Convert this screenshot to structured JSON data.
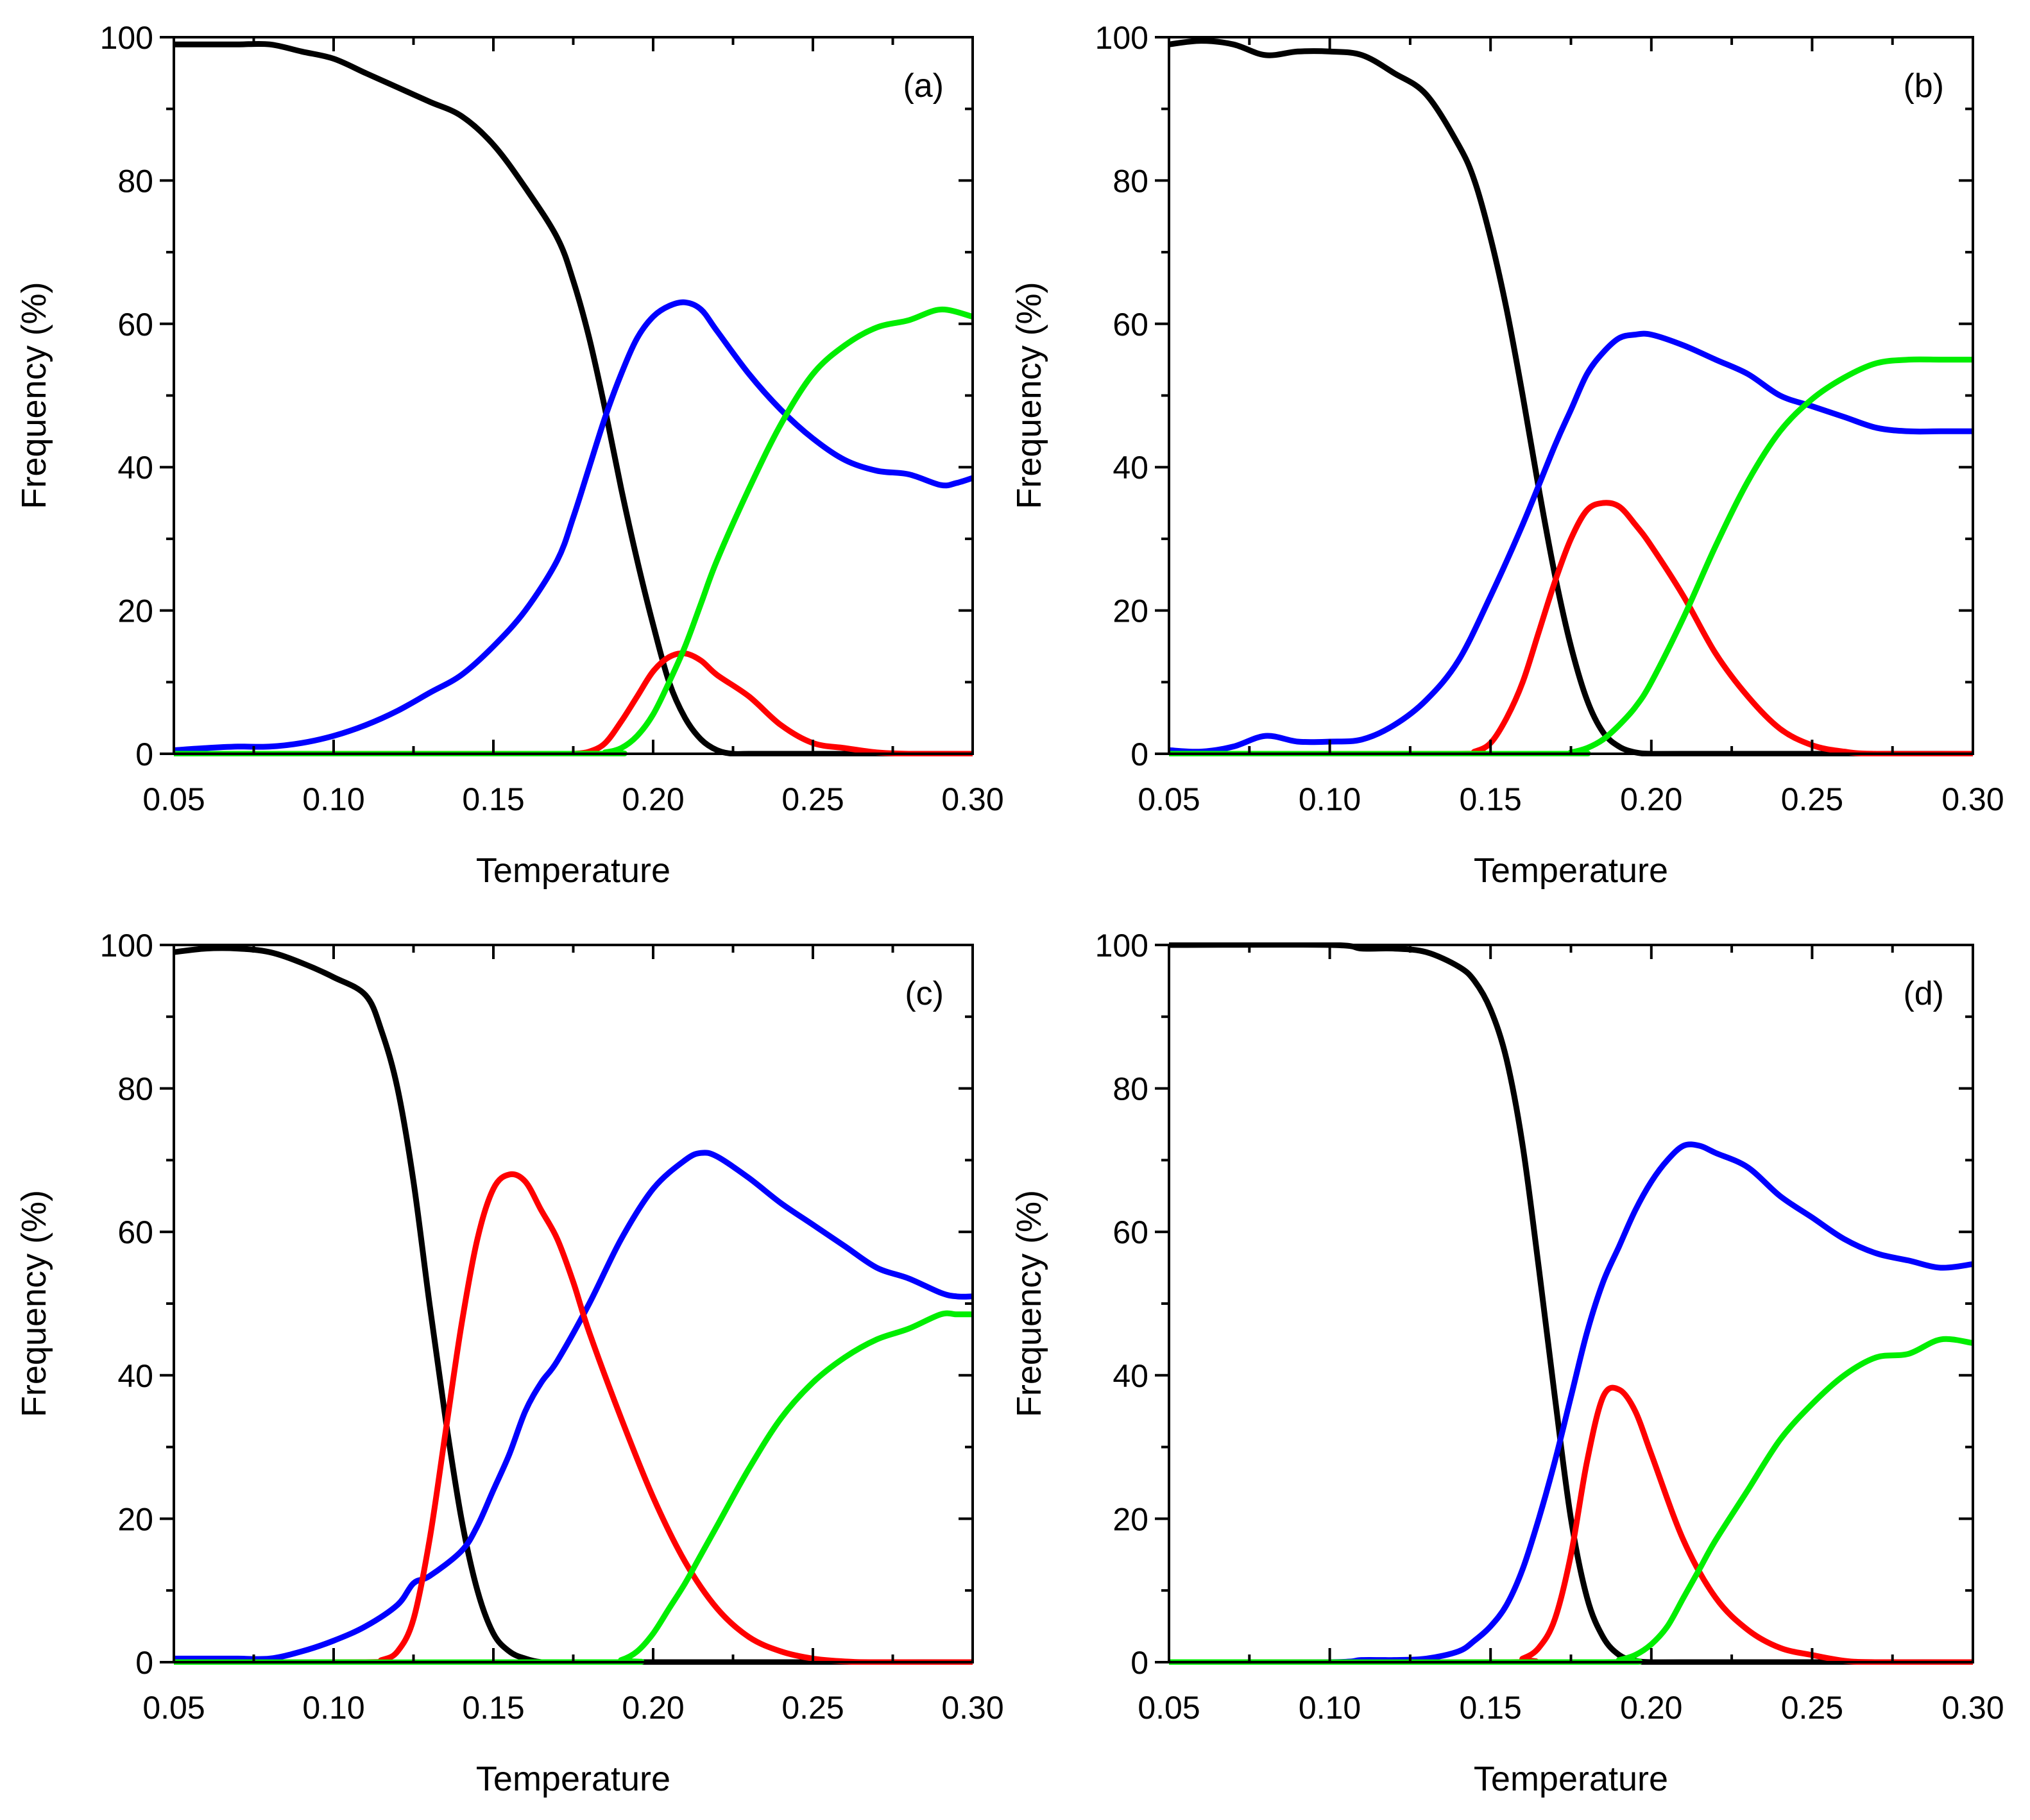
{
  "figure": {
    "panel_count": 4,
    "line_width_note": "thick curves",
    "colors": {
      "black": "#000000",
      "blue": "#0000ff",
      "red": "#ff0000",
      "green": "#00ee00",
      "axes": "#000000"
    }
  },
  "chart_data": [
    {
      "type": "line",
      "panel_label": "(a)",
      "xlabel": "Temperature",
      "ylabel": "Frequency (%)",
      "xlim": [
        0.05,
        0.3
      ],
      "ylim": [
        0,
        100
      ],
      "xticks": [
        "0.05",
        "0.10",
        "0.15",
        "0.20",
        "0.25",
        "0.30"
      ],
      "yticks": [
        "0",
        "20",
        "40",
        "60",
        "80",
        "100"
      ],
      "grid": false,
      "series": [
        {
          "color": "#000000",
          "x": [
            0.05,
            0.06,
            0.07,
            0.08,
            0.09,
            0.1,
            0.11,
            0.12,
            0.13,
            0.14,
            0.15,
            0.16,
            0.17,
            0.175,
            0.18,
            0.185,
            0.19,
            0.195,
            0.2,
            0.205,
            0.21,
            0.215,
            0.22,
            0.225,
            0.23,
            0.25,
            0.3
          ],
          "y": [
            99,
            99,
            99,
            99,
            98,
            97,
            95,
            93,
            91,
            89,
            85,
            79,
            72,
            66,
            58,
            48,
            37,
            27,
            18,
            10,
            5,
            2,
            0.5,
            0,
            0,
            0,
            0
          ]
        },
        {
          "color": "#0000ff",
          "x": [
            0.05,
            0.06,
            0.07,
            0.08,
            0.09,
            0.1,
            0.11,
            0.12,
            0.13,
            0.14,
            0.15,
            0.16,
            0.17,
            0.175,
            0.18,
            0.185,
            0.19,
            0.195,
            0.2,
            0.205,
            0.21,
            0.215,
            0.22,
            0.23,
            0.24,
            0.25,
            0.26,
            0.27,
            0.28,
            0.29,
            0.295,
            0.3
          ],
          "y": [
            0.5,
            0.8,
            1,
            1,
            1.5,
            2.5,
            4,
            6,
            8.5,
            11,
            15,
            20,
            27,
            33,
            40,
            47,
            53,
            58,
            61,
            62.5,
            63,
            62,
            59,
            53,
            48,
            44,
            41,
            39.5,
            39,
            37.5,
            37.8,
            38.5
          ]
        },
        {
          "color": "#ff0000",
          "x": [
            0.05,
            0.17,
            0.175,
            0.18,
            0.185,
            0.19,
            0.195,
            0.2,
            0.205,
            0.21,
            0.215,
            0.22,
            0.23,
            0.24,
            0.25,
            0.26,
            0.27,
            0.28,
            0.3
          ],
          "y": [
            0,
            0,
            0,
            0.3,
            1.5,
            4.5,
            8,
            11.5,
            13.5,
            14,
            13,
            11,
            8,
            4,
            1.5,
            0.8,
            0.2,
            0,
            0
          ]
        },
        {
          "color": "#00ee00",
          "x": [
            0.05,
            0.18,
            0.185,
            0.19,
            0.195,
            0.2,
            0.205,
            0.21,
            0.215,
            0.22,
            0.23,
            0.24,
            0.25,
            0.26,
            0.27,
            0.28,
            0.29,
            0.3
          ],
          "y": [
            0,
            0,
            0.2,
            0.8,
            2.5,
            5.5,
            10,
            15,
            21,
            27,
            37,
            46,
            53,
            57,
            59.5,
            60.5,
            62,
            61
          ]
        }
      ]
    },
    {
      "type": "line",
      "panel_label": "(b)",
      "xlabel": "Temperature",
      "ylabel": "Frequency (%)",
      "xlim": [
        0.05,
        0.3
      ],
      "ylim": [
        0,
        100
      ],
      "xticks": [
        "0.05",
        "0.10",
        "0.15",
        "0.20",
        "0.25",
        "0.30"
      ],
      "yticks": [
        "0",
        "20",
        "40",
        "60",
        "80",
        "100"
      ],
      "grid": false,
      "series": [
        {
          "color": "#000000",
          "x": [
            0.05,
            0.06,
            0.07,
            0.08,
            0.09,
            0.1,
            0.11,
            0.12,
            0.13,
            0.14,
            0.145,
            0.15,
            0.155,
            0.16,
            0.165,
            0.17,
            0.175,
            0.18,
            0.185,
            0.19,
            0.195,
            0.2,
            0.21,
            0.3
          ],
          "y": [
            99,
            99.5,
            99,
            97.5,
            98,
            98,
            97.5,
            95,
            92,
            85,
            80,
            72,
            62,
            50,
            37,
            25,
            15,
            7.5,
            3,
            1,
            0.2,
            0,
            0,
            0
          ]
        },
        {
          "color": "#0000ff",
          "x": [
            0.05,
            0.06,
            0.07,
            0.08,
            0.09,
            0.1,
            0.11,
            0.12,
            0.13,
            0.14,
            0.15,
            0.16,
            0.17,
            0.175,
            0.18,
            0.185,
            0.19,
            0.195,
            0.2,
            0.21,
            0.22,
            0.23,
            0.24,
            0.25,
            0.26,
            0.27,
            0.28,
            0.29,
            0.3
          ],
          "y": [
            0.5,
            0.3,
            1,
            2.5,
            1.7,
            1.7,
            2,
            4,
            7.5,
            13,
            22,
            32,
            43,
            48,
            53,
            56,
            58,
            58.5,
            58.5,
            57,
            55,
            53,
            50,
            48.5,
            47,
            45.5,
            45,
            45,
            45
          ]
        },
        {
          "color": "#ff0000",
          "x": [
            0.05,
            0.14,
            0.145,
            0.15,
            0.155,
            0.16,
            0.165,
            0.17,
            0.175,
            0.18,
            0.185,
            0.19,
            0.195,
            0.2,
            0.21,
            0.22,
            0.23,
            0.24,
            0.25,
            0.26,
            0.27,
            0.3
          ],
          "y": [
            0,
            0,
            0.3,
            1.5,
            5,
            10,
            17,
            24,
            30,
            34,
            35,
            34.5,
            32,
            29,
            22,
            14,
            8,
            3.5,
            1.2,
            0.3,
            0,
            0
          ]
        },
        {
          "color": "#00ee00",
          "x": [
            0.05,
            0.17,
            0.175,
            0.18,
            0.185,
            0.19,
            0.195,
            0.2,
            0.21,
            0.22,
            0.23,
            0.24,
            0.25,
            0.26,
            0.27,
            0.28,
            0.29,
            0.3
          ],
          "y": [
            0,
            0,
            0.2,
            0.8,
            2,
            4,
            6.5,
            10,
            19,
            29,
            38,
            45,
            49.5,
            52.5,
            54.5,
            55,
            55,
            55
          ]
        }
      ]
    },
    {
      "type": "line",
      "panel_label": "(c)",
      "xlabel": "Temperature",
      "ylabel": "Frequency (%)",
      "xlim": [
        0.05,
        0.3
      ],
      "ylim": [
        0,
        100
      ],
      "xticks": [
        "0.05",
        "0.10",
        "0.15",
        "0.20",
        "0.25",
        "0.30"
      ],
      "yticks": [
        "0",
        "20",
        "40",
        "60",
        "80",
        "100"
      ],
      "grid": false,
      "series": [
        {
          "color": "#000000",
          "x": [
            0.05,
            0.06,
            0.07,
            0.08,
            0.09,
            0.1,
            0.11,
            0.115,
            0.12,
            0.125,
            0.13,
            0.135,
            0.14,
            0.145,
            0.15,
            0.155,
            0.16,
            0.165,
            0.17,
            0.3
          ],
          "y": [
            99,
            99.5,
            99.5,
            99,
            97.5,
            95.5,
            93,
            88,
            80,
            67,
            50,
            34,
            20,
            10,
            4,
            1.5,
            0.5,
            0,
            0,
            0
          ]
        },
        {
          "color": "#0000ff",
          "x": [
            0.05,
            0.06,
            0.07,
            0.08,
            0.09,
            0.1,
            0.11,
            0.12,
            0.125,
            0.13,
            0.14,
            0.145,
            0.15,
            0.155,
            0.16,
            0.165,
            0.17,
            0.18,
            0.19,
            0.2,
            0.21,
            0.215,
            0.22,
            0.23,
            0.24,
            0.25,
            0.26,
            0.27,
            0.28,
            0.29,
            0.295,
            0.3
          ],
          "y": [
            0.5,
            0.5,
            0.5,
            0.5,
            1.5,
            3,
            5,
            8,
            11,
            12,
            15.5,
            19,
            24,
            29,
            35,
            39,
            42,
            50,
            59,
            66,
            70,
            71,
            70.5,
            67.5,
            64,
            61,
            58,
            55,
            53.5,
            51.5,
            51,
            51
          ]
        },
        {
          "color": "#ff0000",
          "x": [
            0.05,
            0.11,
            0.115,
            0.12,
            0.125,
            0.13,
            0.135,
            0.14,
            0.145,
            0.15,
            0.155,
            0.16,
            0.165,
            0.17,
            0.175,
            0.18,
            0.19,
            0.2,
            0.21,
            0.22,
            0.23,
            0.24,
            0.25,
            0.26,
            0.27,
            0.3
          ],
          "y": [
            0,
            0,
            0.3,
            1.5,
            6,
            17,
            32,
            47,
            59,
            66,
            68,
            67,
            63,
            59,
            53,
            46,
            34,
            23,
            14,
            7.5,
            3.5,
            1.5,
            0.5,
            0.1,
            0,
            0
          ]
        },
        {
          "color": "#00ee00",
          "x": [
            0.05,
            0.185,
            0.19,
            0.195,
            0.2,
            0.205,
            0.21,
            0.215,
            0.22,
            0.23,
            0.24,
            0.25,
            0.26,
            0.27,
            0.28,
            0.29,
            0.295,
            0.3
          ],
          "y": [
            0,
            0,
            0.3,
            1.5,
            4,
            7.5,
            11,
            15,
            19,
            27,
            34,
            39,
            42.5,
            45,
            46.5,
            48.5,
            48.5,
            48.5
          ]
        }
      ]
    },
    {
      "type": "line",
      "panel_label": "(d)",
      "xlabel": "Temperature",
      "ylabel": "Frequency (%)",
      "xlim": [
        0.05,
        0.3
      ],
      "ylim": [
        0,
        100
      ],
      "xticks": [
        "0.05",
        "0.10",
        "0.15",
        "0.20",
        "0.25",
        "0.30"
      ],
      "yticks": [
        "0",
        "20",
        "40",
        "60",
        "80",
        "100"
      ],
      "grid": false,
      "series": [
        {
          "color": "#000000",
          "x": [
            0.05,
            0.1,
            0.11,
            0.12,
            0.13,
            0.14,
            0.145,
            0.15,
            0.155,
            0.16,
            0.165,
            0.17,
            0.175,
            0.18,
            0.185,
            0.19,
            0.195,
            0.2,
            0.21,
            0.3
          ],
          "y": [
            100,
            100,
            99.5,
            99.5,
            99,
            97,
            95,
            91,
            84,
            72,
            55,
            37,
            20,
            9,
            3.5,
            1,
            0.2,
            0,
            0,
            0
          ]
        },
        {
          "color": "#0000ff",
          "x": [
            0.05,
            0.1,
            0.11,
            0.12,
            0.13,
            0.14,
            0.145,
            0.15,
            0.155,
            0.16,
            0.165,
            0.17,
            0.175,
            0.18,
            0.185,
            0.19,
            0.195,
            0.2,
            0.205,
            0.21,
            0.215,
            0.22,
            0.23,
            0.24,
            0.25,
            0.26,
            0.27,
            0.28,
            0.29,
            0.3
          ],
          "y": [
            0,
            0,
            0.3,
            0.3,
            0.5,
            1.5,
            3,
            5,
            8,
            13,
            20,
            28,
            37,
            46,
            53,
            58,
            63,
            67,
            70,
            72,
            72,
            71,
            69,
            65,
            62,
            59,
            57,
            56,
            55,
            55.5
          ]
        },
        {
          "color": "#ff0000",
          "x": [
            0.05,
            0.155,
            0.16,
            0.165,
            0.17,
            0.175,
            0.18,
            0.185,
            0.19,
            0.195,
            0.2,
            0.21,
            0.22,
            0.23,
            0.24,
            0.25,
            0.26,
            0.27,
            0.3
          ],
          "y": [
            0,
            0,
            0.5,
            2,
            6,
            15,
            28,
            37,
            38,
            35,
            29,
            17,
            9,
            4.5,
            2,
            1,
            0.2,
            0,
            0
          ]
        },
        {
          "color": "#00ee00",
          "x": [
            0.05,
            0.185,
            0.19,
            0.195,
            0.2,
            0.205,
            0.21,
            0.215,
            0.22,
            0.23,
            0.24,
            0.25,
            0.26,
            0.27,
            0.28,
            0.29,
            0.3
          ],
          "y": [
            0,
            0,
            0.3,
            1,
            2.5,
            5,
            9,
            13,
            17,
            24,
            31,
            36,
            40,
            42.5,
            43,
            45,
            44.5
          ]
        }
      ]
    }
  ]
}
